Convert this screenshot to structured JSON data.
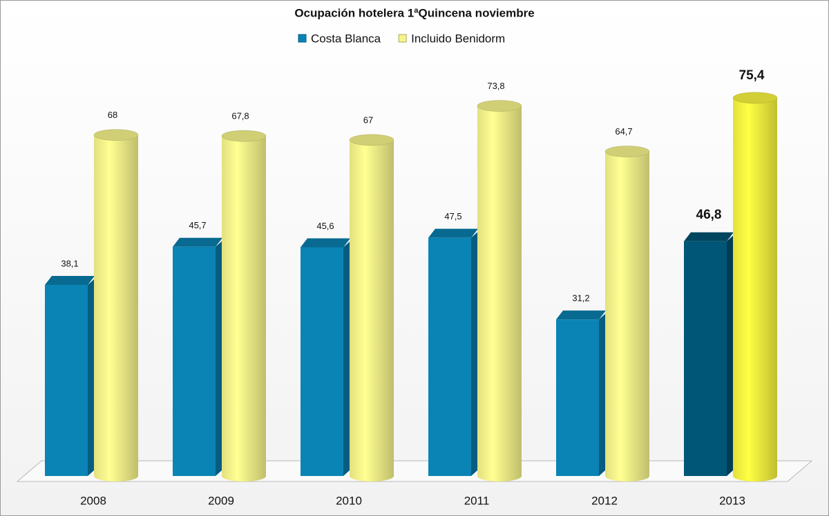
{
  "chart_data": {
    "type": "bar3d",
    "title": "Ocupación hotelera 1ªQuincena noviembre",
    "categories": [
      "2008",
      "2009",
      "2010",
      "2011",
      "2012",
      "2013"
    ],
    "highlight_index": 5,
    "series": [
      {
        "name": "Costa Blanca",
        "shape": "box",
        "color": "#0a84b5",
        "highlight_color": "#005676",
        "values": [
          38.1,
          45.7,
          45.6,
          47.5,
          31.2,
          46.8
        ],
        "value_labels": [
          "38,1",
          "45,7",
          "45,6",
          "47,5",
          "31,2",
          "46,8"
        ]
      },
      {
        "name": "Incluido Benidorm",
        "shape": "cylinder",
        "color": "#f6f38a",
        "highlight_color": "#f7f33f",
        "values": [
          68,
          67.8,
          67,
          73.8,
          64.7,
          75.4
        ],
        "value_labels": [
          "68",
          "67,8",
          "67",
          "73,8",
          "64,7",
          "75,4"
        ]
      }
    ],
    "legend": "top",
    "grid": false
  }
}
